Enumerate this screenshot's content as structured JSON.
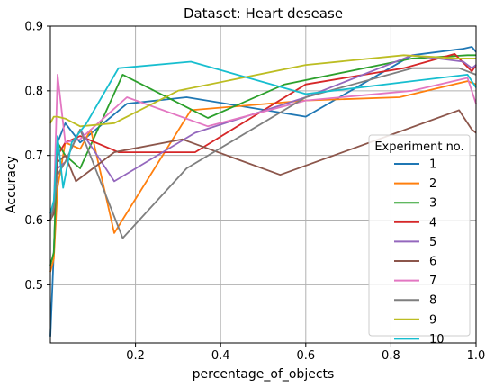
{
  "chart_data": {
    "type": "line",
    "title": "Dataset: Heart desease",
    "xlabel": "percentage_of_objects",
    "ylabel": "Accuracy",
    "xlim": [
      0.0,
      1.0
    ],
    "ylim": [
      0.41,
      0.9
    ],
    "xticks": [
      0.2,
      0.4,
      0.6,
      0.8,
      1.0
    ],
    "xtick_labels": [
      "0.2",
      "0.4",
      "0.6",
      "0.8",
      "1.0"
    ],
    "yticks": [
      0.5,
      0.6,
      0.7,
      0.8,
      0.9
    ],
    "ytick_labels": [
      "0.5",
      "0.6",
      "0.7",
      "0.8",
      "0.9"
    ],
    "grid": true,
    "legend": {
      "title": "Experiment no.",
      "position": "right"
    },
    "series": [
      {
        "name": "1",
        "color": "#1f77b4",
        "x": [
          0.0,
          0.008,
          0.017,
          0.035,
          0.07,
          0.18,
          0.32,
          0.6,
          0.85,
          0.97,
          0.99,
          1.0
        ],
        "y": [
          0.42,
          0.55,
          0.72,
          0.75,
          0.72,
          0.78,
          0.79,
          0.76,
          0.855,
          0.865,
          0.868,
          0.86
        ]
      },
      {
        "name": "2",
        "color": "#ff7f0e",
        "x": [
          0.0,
          0.008,
          0.017,
          0.035,
          0.07,
          0.095,
          0.15,
          0.33,
          0.6,
          0.82,
          0.98,
          1.0
        ],
        "y": [
          0.52,
          0.54,
          0.65,
          0.72,
          0.71,
          0.74,
          0.58,
          0.77,
          0.785,
          0.79,
          0.815,
          0.81
        ]
      },
      {
        "name": "3",
        "color": "#2ca02c",
        "x": [
          0.0,
          0.008,
          0.017,
          0.035,
          0.07,
          0.17,
          0.37,
          0.55,
          0.85,
          0.98,
          1.0
        ],
        "y": [
          0.53,
          0.55,
          0.72,
          0.7,
          0.68,
          0.825,
          0.758,
          0.81,
          0.85,
          0.855,
          0.855
        ]
      },
      {
        "name": "4",
        "color": "#d62728",
        "x": [
          0.0,
          0.008,
          0.017,
          0.035,
          0.07,
          0.16,
          0.34,
          0.6,
          0.83,
          0.95,
          0.99,
          1.0
        ],
        "y": [
          0.6,
          0.61,
          0.7,
          0.72,
          0.73,
          0.705,
          0.705,
          0.81,
          0.835,
          0.857,
          0.83,
          0.84
        ]
      },
      {
        "name": "5",
        "color": "#9467bd",
        "x": [
          0.0,
          0.008,
          0.017,
          0.035,
          0.07,
          0.15,
          0.34,
          0.6,
          0.85,
          0.97,
          0.99,
          1.0
        ],
        "y": [
          0.6,
          0.62,
          0.68,
          0.69,
          0.74,
          0.66,
          0.735,
          0.79,
          0.855,
          0.845,
          0.835,
          0.84
        ]
      },
      {
        "name": "6",
        "color": "#8c564b",
        "x": [
          0.0,
          0.008,
          0.017,
          0.035,
          0.06,
          0.15,
          0.31,
          0.54,
          0.96,
          0.99,
          1.0
        ],
        "y": [
          0.6,
          0.61,
          0.69,
          0.7,
          0.66,
          0.705,
          0.725,
          0.67,
          0.77,
          0.74,
          0.735
        ]
      },
      {
        "name": "7",
        "color": "#e377c2",
        "x": [
          0.0,
          0.008,
          0.017,
          0.035,
          0.07,
          0.18,
          0.37,
          0.6,
          0.85,
          0.98,
          1.0
        ],
        "y": [
          0.61,
          0.62,
          0.825,
          0.72,
          0.725,
          0.79,
          0.745,
          0.785,
          0.8,
          0.82,
          0.78
        ]
      },
      {
        "name": "8",
        "color": "#7f7f7f",
        "x": [
          0.0,
          0.008,
          0.017,
          0.035,
          0.07,
          0.17,
          0.32,
          0.6,
          0.85,
          0.96,
          1.0
        ],
        "y": [
          0.6,
          0.62,
          0.67,
          0.69,
          0.74,
          0.572,
          0.68,
          0.79,
          0.835,
          0.835,
          0.825
        ]
      },
      {
        "name": "9",
        "color": "#bcbd22",
        "x": [
          0.0,
          0.008,
          0.017,
          0.035,
          0.07,
          0.15,
          0.3,
          0.6,
          0.83,
          0.96,
          1.0
        ],
        "y": [
          0.75,
          0.76,
          0.76,
          0.757,
          0.745,
          0.75,
          0.8,
          0.84,
          0.855,
          0.85,
          0.85
        ]
      },
      {
        "name": "10",
        "color": "#17becf",
        "x": [
          0.0,
          0.008,
          0.017,
          0.03,
          0.05,
          0.085,
          0.16,
          0.33,
          0.6,
          0.85,
          0.98,
          1.0
        ],
        "y": [
          0.61,
          0.63,
          0.73,
          0.65,
          0.72,
          0.75,
          0.835,
          0.845,
          0.795,
          0.815,
          0.825,
          0.805
        ]
      }
    ]
  }
}
